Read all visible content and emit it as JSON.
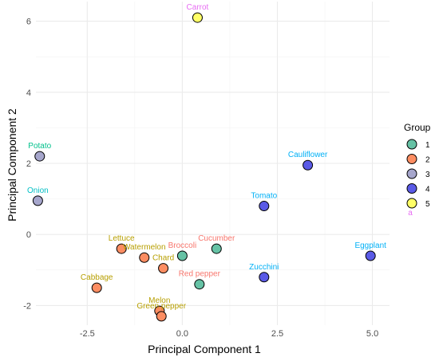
{
  "chart_data": {
    "type": "scatter",
    "xlabel": "Principal Component 1",
    "ylabel": "Principal Component 2",
    "xlim": [
      -3.85,
      5.45
    ],
    "ylim": [
      -2.55,
      6.55
    ],
    "xticks": [
      -2.5,
      0.0,
      2.5,
      5.0
    ],
    "xtick_labels": [
      "-2.5",
      "0.0",
      "2.5",
      "5.0"
    ],
    "yticks": [
      -2,
      0,
      2,
      4,
      6
    ],
    "ytick_labels": [
      "-2",
      "0",
      "2",
      "4",
      "6"
    ],
    "grid": true,
    "legend": {
      "title": "Group",
      "placement": "right",
      "entries": [
        {
          "label": "1",
          "color": "#66c2a5"
        },
        {
          "label": "2",
          "color": "#fc8d62"
        },
        {
          "label": "3",
          "color": "#a6a6cc"
        },
        {
          "label": "4",
          "color": "#5a5ae6"
        },
        {
          "label": "5",
          "color": "#ffff66"
        }
      ],
      "text_key_glyph": "a"
    },
    "points": [
      {
        "name": "Carrot",
        "x": 0.4,
        "y": 6.1,
        "group": "5",
        "label_color": "#e76bf3"
      },
      {
        "name": "Potato",
        "x": -3.75,
        "y": 2.2,
        "group": "3",
        "label_color": "#00c08b"
      },
      {
        "name": "Onion",
        "x": -3.8,
        "y": 0.95,
        "group": "3",
        "label_color": "#00bfc4"
      },
      {
        "name": "Cauliflower",
        "x": 3.3,
        "y": 1.95,
        "group": "4",
        "label_color": "#00b0f6"
      },
      {
        "name": "Tomato",
        "x": 2.15,
        "y": 0.8,
        "group": "4",
        "label_color": "#00b0f6"
      },
      {
        "name": "Eggplant",
        "x": 4.95,
        "y": -0.6,
        "group": "4",
        "label_color": "#00b0f6"
      },
      {
        "name": "Zucchini",
        "x": 2.15,
        "y": -1.2,
        "group": "4",
        "label_color": "#00b0f6"
      },
      {
        "name": "Cucumber",
        "x": 0.9,
        "y": -0.4,
        "group": "1",
        "label_color": "#f8766d"
      },
      {
        "name": "Broccoli",
        "x": 0.0,
        "y": -0.6,
        "group": "1",
        "label_color": "#f8766d"
      },
      {
        "name": "Red pepper",
        "x": 0.45,
        "y": -1.4,
        "group": "1",
        "label_color": "#f8766d"
      },
      {
        "name": "Lettuce",
        "x": -1.6,
        "y": -0.4,
        "group": "2",
        "label_color": "#b79f00"
      },
      {
        "name": "Watermelon",
        "x": -1.0,
        "y": -0.65,
        "group": "2",
        "label_color": "#b79f00"
      },
      {
        "name": "Chard",
        "x": -0.5,
        "y": -0.95,
        "group": "2",
        "label_color": "#b79f00"
      },
      {
        "name": "Cabbage",
        "x": -2.25,
        "y": -1.5,
        "group": "2",
        "label_color": "#b79f00"
      },
      {
        "name": "Melon",
        "x": -0.6,
        "y": -2.15,
        "group": "2",
        "label_color": "#b79f00"
      },
      {
        "name": "Green pepper",
        "x": -0.55,
        "y": -2.3,
        "group": "2",
        "label_color": "#b79f00"
      }
    ]
  }
}
